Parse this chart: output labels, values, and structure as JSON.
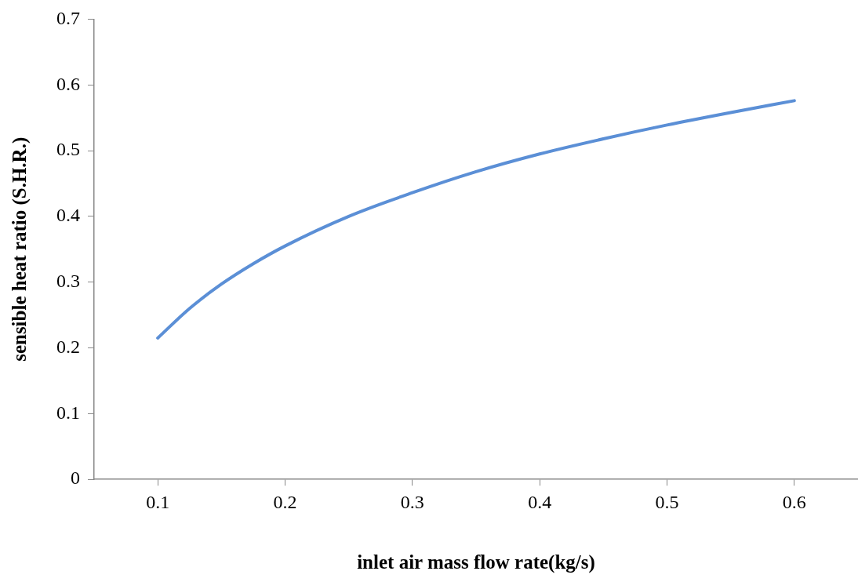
{
  "chart_data": {
    "type": "line",
    "xlabel": "inlet air mass flow rate(kg/s)",
    "ylabel": "sensible heat ratio (S.H.R.)",
    "series": [
      {
        "color": "#5b8fd6",
        "x": [
          0.1,
          0.125,
          0.15,
          0.175,
          0.2,
          0.25,
          0.3,
          0.35,
          0.4,
          0.45,
          0.5,
          0.55,
          0.6
        ],
        "values": [
          0.215,
          0.26,
          0.297,
          0.328,
          0.355,
          0.4,
          0.436,
          0.468,
          0.495,
          0.518,
          0.539,
          0.558,
          0.576
        ]
      }
    ],
    "xlim": [
      0.05,
      0.65
    ],
    "xticks": [
      0.1,
      0.2,
      0.3,
      0.4,
      0.5,
      0.6
    ],
    "ylim": [
      0,
      0.7
    ],
    "yticks": [
      0,
      0.1,
      0.2,
      0.3,
      0.4,
      0.5,
      0.6,
      0.7
    ],
    "grid": false,
    "legend": false,
    "marker": "none",
    "line_style": "solid"
  }
}
